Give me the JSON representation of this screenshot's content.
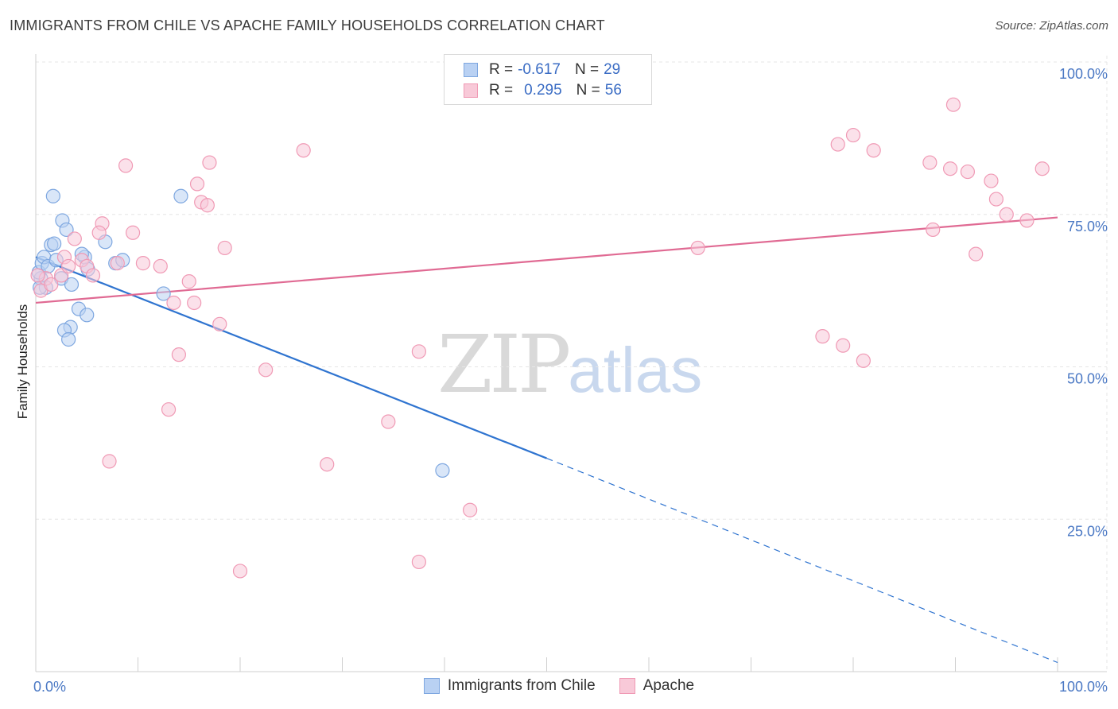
{
  "header": {
    "title": "IMMIGRANTS FROM CHILE VS APACHE FAMILY HOUSEHOLDS CORRELATION CHART",
    "source": "Source: ZipAtlas.com"
  },
  "legend": {
    "rows": [
      {
        "r_label": "R =",
        "r_value": "-0.617",
        "n_label": "N =",
        "n_value": "29"
      },
      {
        "r_label": "R =",
        "r_value": "0.295",
        "n_label": "N =",
        "n_value": "56"
      }
    ]
  },
  "watermark": {
    "zip": "ZIP",
    "atlas": "atlas"
  },
  "chart_data": {
    "type": "scatter",
    "title": "IMMIGRANTS FROM CHILE VS APACHE FAMILY HOUSEHOLDS CORRELATION CHART",
    "xlabel": "",
    "ylabel": "Family Households",
    "xlim": [
      0,
      100
    ],
    "ylim": [
      0,
      100
    ],
    "x_tick_labels": [
      "0.0%",
      "100.0%"
    ],
    "y_tick_labels": [
      "100.0%",
      "75.0%",
      "50.0%",
      "25.0%"
    ],
    "y_tick_values": [
      100,
      75,
      50,
      25
    ],
    "grid": true,
    "series": [
      {
        "name": "Immigrants from Chile",
        "color": "#7ea7e0",
        "fill": "#b9d1f3",
        "line_color": "#2f74d0",
        "trend": {
          "x0": 0,
          "y0": 68,
          "x1": 50,
          "y1": 35,
          "dash_to_x": 100,
          "dash_to_y": 1.5
        },
        "points": [
          [
            0.5,
            64.5
          ],
          [
            0.3,
            65.5
          ],
          [
            0.6,
            67
          ],
          [
            0.8,
            68
          ],
          [
            1.0,
            63
          ],
          [
            1.2,
            66.5
          ],
          [
            1.5,
            70
          ],
          [
            1.8,
            70.2
          ],
          [
            2.0,
            67.5
          ],
          [
            2.5,
            64.5
          ],
          [
            1.7,
            78
          ],
          [
            2.6,
            74
          ],
          [
            3.0,
            72.5
          ],
          [
            3.5,
            63.5
          ],
          [
            4.2,
            59.5
          ],
          [
            5.0,
            58.5
          ],
          [
            5.1,
            66
          ],
          [
            4.8,
            68
          ],
          [
            3.4,
            56.5
          ],
          [
            2.8,
            56
          ],
          [
            3.2,
            54.5
          ],
          [
            6.8,
            70.5
          ],
          [
            7.8,
            67
          ],
          [
            8.5,
            67.5
          ],
          [
            12.5,
            62
          ],
          [
            14.2,
            78
          ],
          [
            4.5,
            68.5
          ],
          [
            0.4,
            63
          ],
          [
            39.8,
            33
          ]
        ]
      },
      {
        "name": "Apache",
        "color": "#f09ab5",
        "fill": "#f8c9d8",
        "line_color": "#e06a93",
        "trend": {
          "x0": 0,
          "y0": 60.5,
          "x1": 100,
          "y1": 74.5
        },
        "points": [
          [
            0.5,
            62.5
          ],
          [
            1.0,
            64.5
          ],
          [
            1.5,
            63.5
          ],
          [
            2.5,
            65
          ],
          [
            2.8,
            68
          ],
          [
            3.2,
            66.5
          ],
          [
            3.8,
            71
          ],
          [
            4.5,
            67.5
          ],
          [
            5.0,
            66.5
          ],
          [
            5.6,
            65
          ],
          [
            6.5,
            73.5
          ],
          [
            6.2,
            72
          ],
          [
            8.0,
            67
          ],
          [
            9.5,
            72
          ],
          [
            10.5,
            67
          ],
          [
            12.2,
            66.5
          ],
          [
            13.5,
            60.5
          ],
          [
            15.0,
            64
          ],
          [
            15.5,
            60.5
          ],
          [
            15.8,
            80
          ],
          [
            16.2,
            77
          ],
          [
            16.8,
            76.5
          ],
          [
            17.0,
            83.5
          ],
          [
            18.5,
            69.5
          ],
          [
            18.0,
            57
          ],
          [
            14.0,
            52
          ],
          [
            13.0,
            43
          ],
          [
            8.8,
            83
          ],
          [
            7.2,
            34.5
          ],
          [
            20.0,
            16.5
          ],
          [
            22.5,
            49.5
          ],
          [
            26.2,
            85.5
          ],
          [
            28.5,
            34
          ],
          [
            34.5,
            41
          ],
          [
            37.5,
            52.5
          ],
          [
            37.5,
            18
          ],
          [
            42.5,
            26.5
          ],
          [
            64.8,
            69.5
          ],
          [
            77.0,
            55
          ],
          [
            79.0,
            53.5
          ],
          [
            81.0,
            51
          ],
          [
            78.5,
            86.5
          ],
          [
            80.0,
            88
          ],
          [
            82.0,
            85.5
          ],
          [
            87.5,
            83.5
          ],
          [
            87.8,
            72.5
          ],
          [
            89.5,
            82.5
          ],
          [
            89.8,
            93
          ],
          [
            91.2,
            82
          ],
          [
            92.0,
            68.5
          ],
          [
            93.5,
            80.5
          ],
          [
            94.0,
            77.5
          ],
          [
            95.0,
            75
          ],
          [
            97.0,
            74
          ],
          [
            98.5,
            82.5
          ],
          [
            0.2,
            65
          ]
        ]
      }
    ]
  },
  "bottom_legend": {
    "items": [
      {
        "label": "Immigrants from Chile",
        "color": "#7ea7e0",
        "fill": "#b9d1f3"
      },
      {
        "label": "Apache",
        "color": "#f09ab5",
        "fill": "#f8c9d8"
      }
    ]
  }
}
